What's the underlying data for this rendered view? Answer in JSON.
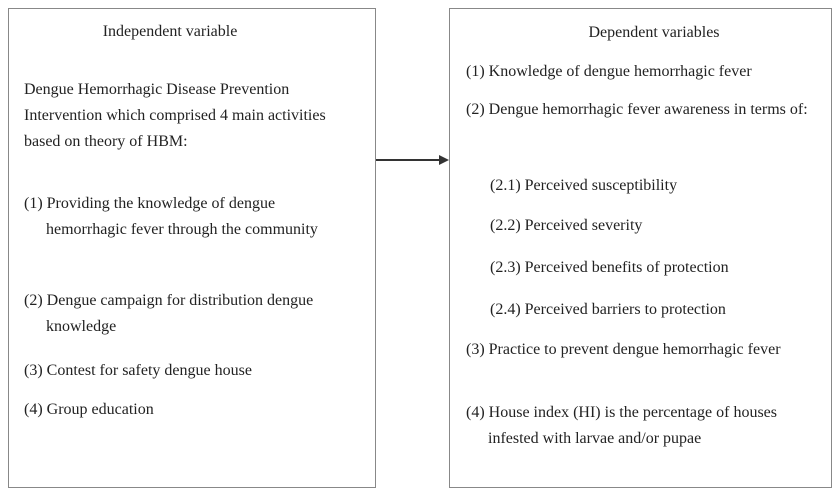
{
  "left": {
    "title": "Independent variable",
    "intro": "Dengue Hemorrhagic Disease Prevention Intervention which comprised 4 main activities based on theory of HBM:",
    "items": [
      "(1) Providing the knowledge of dengue hemorrhagic fever through the community",
      "(2) Dengue campaign for distribution dengue knowledge",
      "(3) Contest for safety dengue house",
      "(4) Group education"
    ]
  },
  "right": {
    "title": "Dependent variables",
    "items": [
      "(1) Knowledge of dengue hemorrhagic fever",
      "(2) Dengue hemorrhagic fever awareness in terms of:",
      "(2.1) Perceived susceptibility",
      "(2.2) Perceived severity",
      "(2.3) Perceived benefits of protection",
      "(2.4) Perceived barriers to protection",
      "(3) Practice to prevent dengue hemorrhagic fever",
      "(4) House index (HI) is the percentage of houses infested with larvae and/or pupae"
    ]
  }
}
